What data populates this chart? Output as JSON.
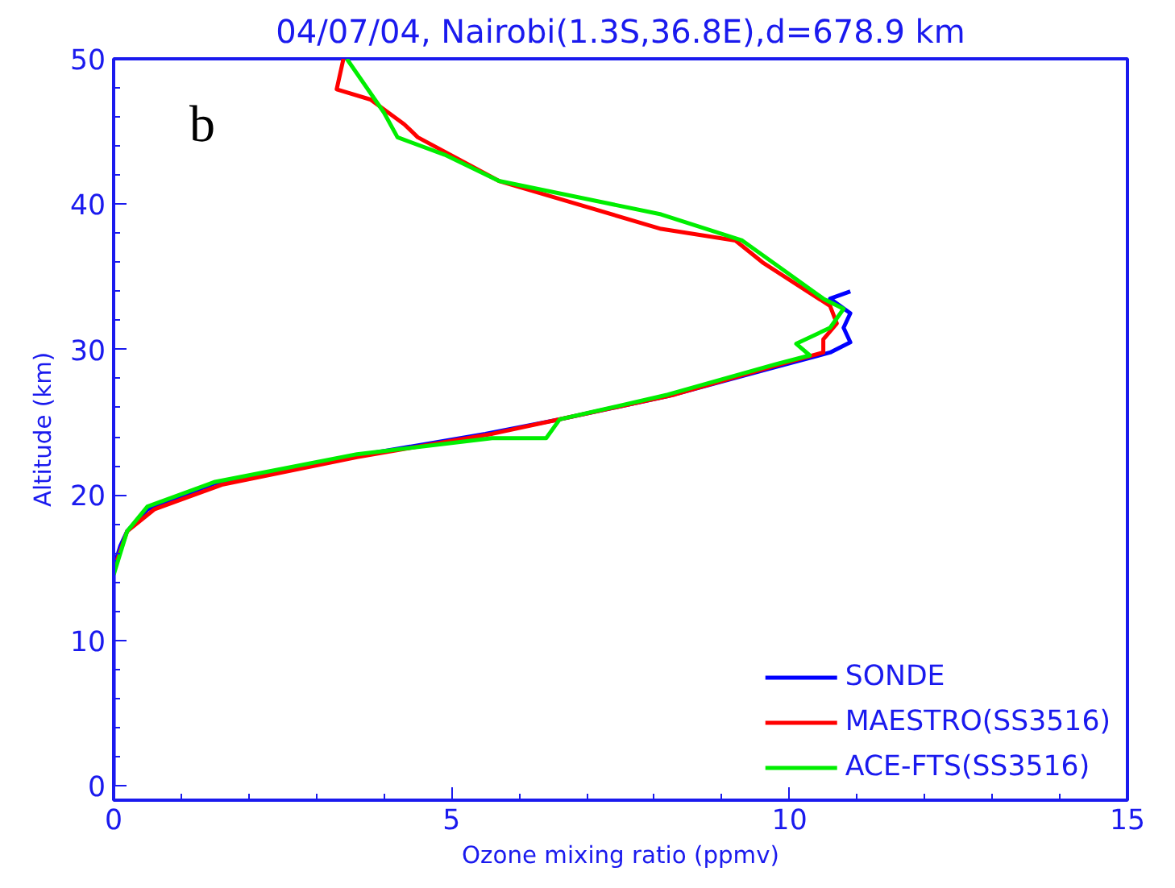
{
  "chart_data": {
    "type": "line",
    "title": "04/07/04, Nairobi(1.3S,36.8E),d=678.9 km",
    "xlabel": "Ozone mixing ratio (ppmv)",
    "ylabel": "Altitude (km)",
    "xlim": [
      0,
      15
    ],
    "xticks": [
      0,
      5,
      10,
      15
    ],
    "ylim": [
      -1,
      50
    ],
    "yticks": [
      0,
      10,
      20,
      30,
      40,
      50
    ],
    "grid": false,
    "legend": "bottom right",
    "line_style": "solid",
    "marker": "none",
    "annotations": [
      "b"
    ],
    "series": [
      {
        "name": "SONDE",
        "color": "#0000ff",
        "x": [
          0,
          0,
          0.1,
          0.2,
          0.5,
          1.5,
          3.6,
          5.5,
          6.6,
          8.2,
          9.8,
          10.6,
          10.9,
          10.8,
          10.9,
          10.6,
          10.9
        ],
        "values": [
          0,
          15,
          16.5,
          17.5,
          19,
          20.8,
          22.7,
          24.2,
          25.2,
          26.8,
          28.8,
          29.8,
          30.5,
          31.5,
          32.5,
          33.5,
          34
        ]
      },
      {
        "name": "MAESTRO(SS3516)",
        "color": "#ff0000",
        "x": [
          0.05,
          0.2,
          0.6,
          1.6,
          3.6,
          5.6,
          6.7,
          8.3,
          9.8,
          10.5,
          10.5,
          10.7,
          10.6,
          9.6,
          9.2,
          8.1,
          5.7,
          4.5,
          4.3,
          3.8,
          3.3,
          3.4
        ],
        "values": [
          15.5,
          17.5,
          19,
          20.7,
          22.6,
          24.2,
          25.3,
          26.9,
          28.9,
          29.8,
          30.7,
          31.8,
          33,
          36,
          37.5,
          38.3,
          41.6,
          44.6,
          45.5,
          47.2,
          47.9,
          50
        ]
      },
      {
        "name": "ACE-FTS(SS3516)",
        "color": "#00ee00",
        "x": [
          0,
          0.1,
          0.2,
          0.5,
          1.5,
          3.6,
          5.6,
          6.4,
          6.6,
          8.2,
          9.8,
          10.3,
          10.1,
          10.6,
          10.8,
          10.5,
          9.9,
          9.3,
          8.1,
          5.7,
          4.9,
          4.2,
          4.0,
          3.45
        ],
        "values": [
          14.5,
          16,
          17.5,
          19.2,
          20.9,
          22.8,
          23.9,
          23.9,
          25.2,
          26.9,
          29,
          29.6,
          30.4,
          31.5,
          32.8,
          33.5,
          35.5,
          37.5,
          39.3,
          41.6,
          43.4,
          44.6,
          46.3,
          50
        ]
      }
    ]
  }
}
